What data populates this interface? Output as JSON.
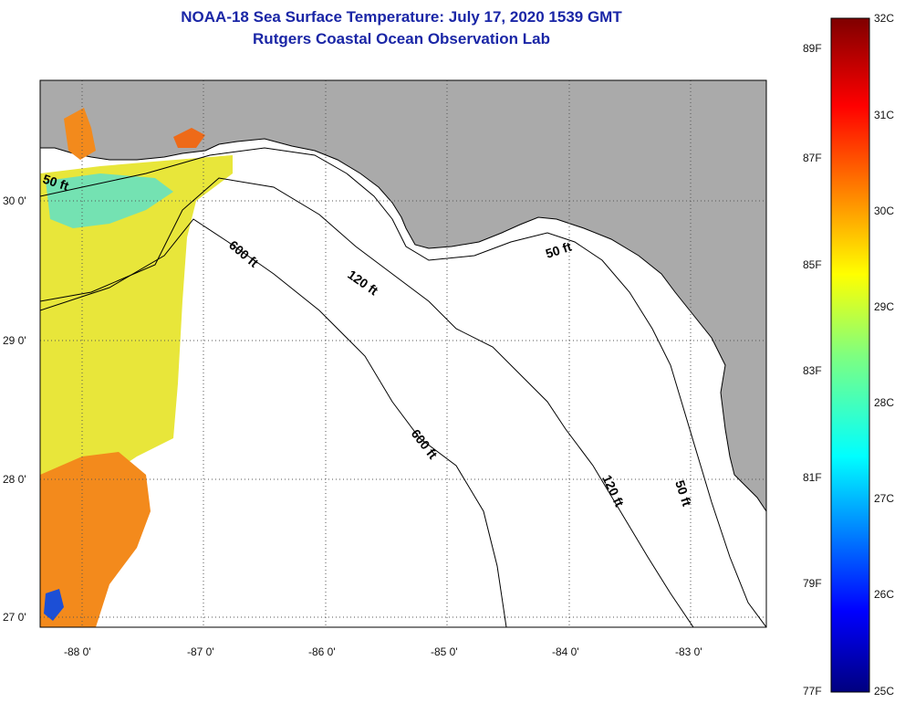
{
  "title": {
    "line1": "NOAA-18 Sea Surface Temperature:  July 17, 2020 1539 GMT",
    "line2": "Rutgers Coastal Ocean Observation Lab"
  },
  "axes": {
    "lon_labels": [
      "-88 0'",
      "-87 0'",
      "-86 0'",
      "-85 0'",
      "-84 0'",
      "-83 0'"
    ],
    "lat_labels": [
      "30 0'",
      "29 0'",
      "28 0'",
      "27 0'"
    ]
  },
  "contours": {
    "labels": [
      "50 ft",
      "600 ft",
      "120 ft",
      "50 ft",
      "600 ft",
      "120 ft",
      "50 ft"
    ]
  },
  "colorbar": {
    "celsius": [
      "32C",
      "31C",
      "30C",
      "29C",
      "28C",
      "27C",
      "26C",
      "25C"
    ],
    "fahrenheit": [
      "89F",
      "87F",
      "85F",
      "83F",
      "81F",
      "79F",
      "77F"
    ]
  },
  "colors": {
    "title": "#1a26a6",
    "land": "#aaaaaa",
    "water": "#ffffff"
  }
}
